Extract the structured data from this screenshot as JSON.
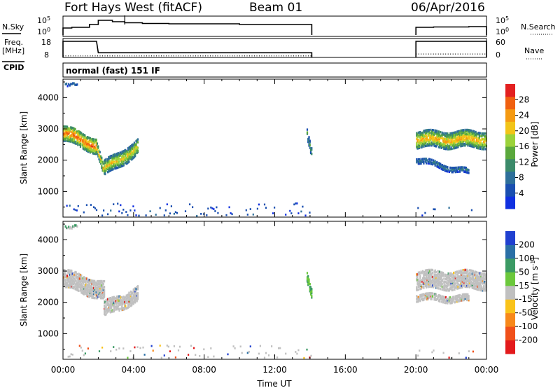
{
  "header": {
    "radar": "Fort Hays West (fitACF)",
    "beam": "Beam 01",
    "date": "06/Apr/2016"
  },
  "mode_label": "normal (fast) 151 IF",
  "colors": {
    "line": "#000000",
    "ground_scatter": "#c0c0c0",
    "power_scale": [
      "#1030e0",
      "#1a4fb0",
      "#2e6f9a",
      "#3b8a6a",
      "#5aa83c",
      "#9bd23a",
      "#f2c418",
      "#f59a12",
      "#f06010",
      "#e32020"
    ],
    "velocity_scale": [
      "#e31a1c",
      "#f0501a",
      "#f7881a",
      "#f9c31a",
      "#c0c0c0",
      "#6cc83c",
      "#3b9a64",
      "#2a6fa6",
      "#2040d0"
    ]
  },
  "chart_data": [
    {
      "type": "line",
      "panel": "noise",
      "left_label": "N.Sky",
      "right_label": "N.Search",
      "left_ticks": [
        "10^5",
        "10^0"
      ],
      "right_ticks": [
        "10^5",
        "10^0"
      ],
      "series": [
        {
          "style": "solid",
          "x": [
            0,
            0.5,
            1.5,
            2.0,
            2.8,
            3.5,
            4.5,
            6,
            8,
            10,
            12,
            14.1
          ],
          "y": [
            2.0,
            2.2,
            3.0,
            4.2,
            3.8,
            3.5,
            3.3,
            3.2,
            3.2,
            3.0,
            3.0,
            3.0
          ]
        },
        {
          "style": "solid",
          "x": [
            20,
            21,
            22,
            23,
            24
          ],
          "y": [
            2.2,
            2.3,
            2.3,
            2.4,
            2.4
          ]
        }
      ]
    },
    {
      "type": "line",
      "panel": "frequency",
      "left_label": "Freq.",
      "left_unit": "[MHz]",
      "right_label": "Nave",
      "left_ticks": [
        "18",
        "8"
      ],
      "right_ticks": [
        "60",
        "0"
      ],
      "series": [
        {
          "style": "solid",
          "x": [
            0,
            1.9,
            2.0,
            14.1
          ],
          "y": [
            16.5,
            16.5,
            10.5,
            10.5
          ]
        },
        {
          "style": "solid",
          "x": [
            20,
            24
          ],
          "y": [
            16.5,
            16.5
          ]
        },
        {
          "style": "dotted",
          "x": [
            0,
            14.1
          ],
          "y": [
            8.8,
            8.8
          ]
        },
        {
          "style": "dotted",
          "x": [
            20,
            24
          ],
          "y": [
            9.8,
            9.8
          ]
        }
      ]
    },
    {
      "type": "heatmap",
      "panel": "power",
      "ylabel": "Slant Range [km]",
      "ylim": [
        180,
        4590
      ],
      "yticks": [
        1000,
        2000,
        3000,
        4000
      ],
      "colorbar_label": "Power [dB]",
      "colorbar_ticks": [
        4,
        8,
        12,
        16,
        20,
        24,
        28
      ],
      "colorbar_range": [
        0,
        32
      ],
      "scatter_regions": [
        {
          "t": [
            0.0,
            1.9
          ],
          "center": [
            2900,
            2500
          ],
          "width": 480,
          "peak": 28
        },
        {
          "t": [
            1.9,
            2.3
          ],
          "center": [
            2450,
            1650
          ],
          "width": 350,
          "peak": 24
        },
        {
          "t": [
            2.3,
            4.2
          ],
          "center": [
            1750,
            2450
          ],
          "width": 450,
          "peak": 22
        },
        {
          "t": [
            13.8,
            14.1
          ],
          "center": [
            2950,
            2200
          ],
          "width": 300,
          "peak": 14
        },
        {
          "t": [
            20.0,
            24.0
          ],
          "center": [
            2700,
            2700
          ],
          "width": 500,
          "peak": 24
        },
        {
          "t": [
            20.0,
            23.0
          ],
          "center": [
            2050,
            1650
          ],
          "width": 160,
          "peak": 10
        }
      ]
    },
    {
      "type": "heatmap",
      "panel": "velocity",
      "ylabel": "Slant Range [km]",
      "ylim": [
        180,
        4590
      ],
      "yticks": [
        1000,
        2000,
        3000,
        4000
      ],
      "colorbar_label": "Velocity [m s^-1]",
      "colorbar_ticks": [
        "200",
        "100",
        "50",
        "15",
        "-15",
        "-50",
        "-100",
        "-200"
      ],
      "xlabel": "Time UT",
      "xticks": [
        "00:00",
        "04:00",
        "08:00",
        "12:00",
        "16:00",
        "20:00",
        "00:00"
      ],
      "xlim": [
        0,
        24
      ],
      "scatter_regions": [
        {
          "t": [
            0.0,
            2.3
          ],
          "center": [
            2800,
            2400
          ],
          "width": 550,
          "kind": "ground"
        },
        {
          "t": [
            2.3,
            4.2
          ],
          "center": [
            1800,
            2300
          ],
          "width": 450,
          "kind": "ground"
        },
        {
          "t": [
            13.8,
            14.1
          ],
          "center": [
            2900,
            2250
          ],
          "width": 280,
          "kind": "positive"
        },
        {
          "t": [
            20.0,
            24.0
          ],
          "center": [
            2750,
            2750
          ],
          "width": 550,
          "kind": "ground"
        },
        {
          "t": [
            20.0,
            23.0
          ],
          "center": [
            2200,
            2150
          ],
          "width": 200,
          "kind": "ground"
        }
      ]
    }
  ]
}
